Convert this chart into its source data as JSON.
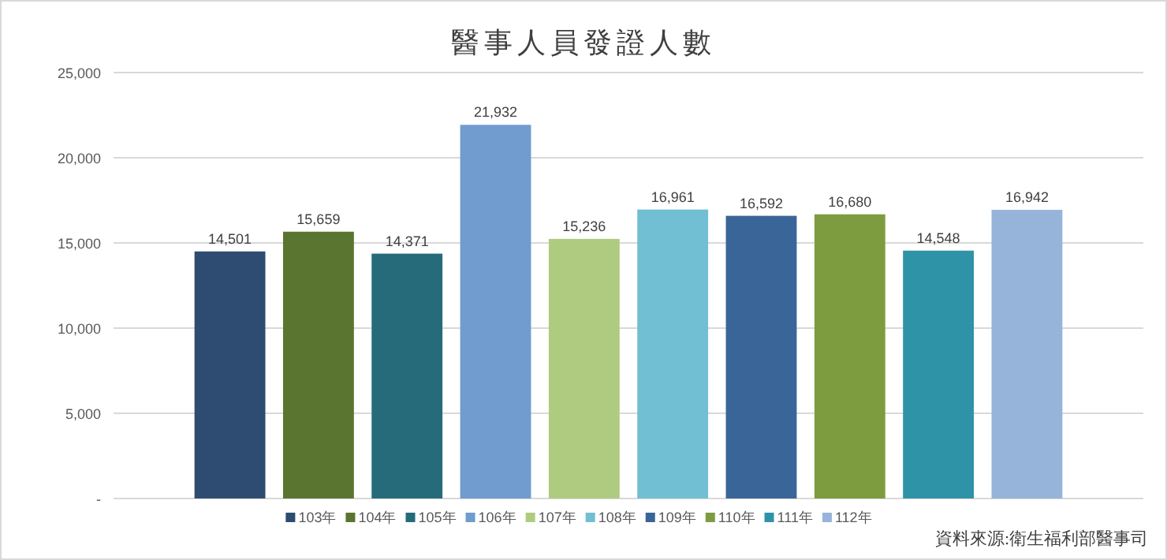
{
  "chart_data": {
    "type": "bar",
    "title": "醫事人員發證人數",
    "categories": [
      null
    ],
    "series": [
      {
        "name": "103年",
        "color": "#2e4c72",
        "values": [
          14501
        ],
        "value_labels": [
          "14,501"
        ]
      },
      {
        "name": "104年",
        "color": "#5a7530",
        "values": [
          15659
        ],
        "value_labels": [
          "15,659"
        ]
      },
      {
        "name": "105年",
        "color": "#256b7a",
        "values": [
          14371
        ],
        "value_labels": [
          "14,371"
        ]
      },
      {
        "name": "106年",
        "color": "#709ccf",
        "values": [
          21932
        ],
        "value_labels": [
          "21,932"
        ]
      },
      {
        "name": "107年",
        "color": "#aecb80",
        "values": [
          15236
        ],
        "value_labels": [
          "15,236"
        ]
      },
      {
        "name": "108年",
        "color": "#70bfd3",
        "values": [
          16961
        ],
        "value_labels": [
          "16,961"
        ]
      },
      {
        "name": "109年",
        "color": "#3a6598",
        "values": [
          16592
        ],
        "value_labels": [
          "16,592"
        ]
      },
      {
        "name": "110年",
        "color": "#7d9c40",
        "values": [
          16680
        ],
        "value_labels": [
          "16,680"
        ]
      },
      {
        "name": "111年",
        "color": "#2f93a8",
        "values": [
          14548
        ],
        "value_labels": [
          "14,548"
        ]
      },
      {
        "name": "112年",
        "color": "#96b4d9",
        "values": [
          16942
        ],
        "value_labels": [
          "16,942"
        ]
      }
    ],
    "ylim": [
      0,
      25000
    ],
    "yticks": [
      {
        "value": 0,
        "label": "-"
      },
      {
        "value": 5000,
        "label": "5,000"
      },
      {
        "value": 10000,
        "label": "10,000"
      },
      {
        "value": 15000,
        "label": "15,000"
      },
      {
        "value": 20000,
        "label": "20,000"
      },
      {
        "value": 25000,
        "label": "25,000"
      }
    ],
    "grid": "y",
    "legend": "bottom",
    "annotations": [
      "資料來源:衛生福利部醫事司"
    ]
  }
}
